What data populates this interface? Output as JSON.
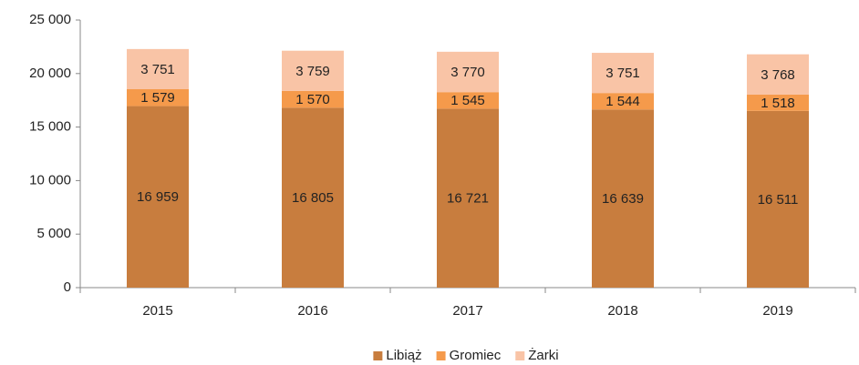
{
  "chart_data": {
    "type": "stacked_bar",
    "categories": [
      "2015",
      "2016",
      "2017",
      "2018",
      "2019"
    ],
    "series": [
      {
        "name": "Libiąż",
        "color": "#c87d3e",
        "values": [
          16959,
          16805,
          16721,
          16639,
          16511
        ],
        "value_labels": [
          "16 959",
          "16 805",
          "16 721",
          "16 639",
          "16 511"
        ]
      },
      {
        "name": "Gromiec",
        "color": "#f59a4b",
        "values": [
          1579,
          1570,
          1545,
          1544,
          1518
        ],
        "value_labels": [
          "1 579",
          "1 570",
          "1 545",
          "1 544",
          "1 518"
        ]
      },
      {
        "name": "Żarki",
        "color": "#f9c4a6",
        "values": [
          3751,
          3759,
          3770,
          3751,
          3768
        ],
        "value_labels": [
          "3 751",
          "3 759",
          "3 770",
          "3 751",
          "3 768"
        ]
      }
    ],
    "ylim": [
      0,
      25000
    ],
    "yticks": [
      0,
      {
        "value": 5000,
        "label": "5 000"
      },
      {
        "value": 10000,
        "label": "10 000"
      },
      {
        "value": 15000,
        "label": "15 000"
      },
      {
        "value": 20000,
        "label": "20 000"
      },
      {
        "value": 25000,
        "label": "25 000"
      }
    ],
    "grid": false,
    "legend": "bottom"
  }
}
